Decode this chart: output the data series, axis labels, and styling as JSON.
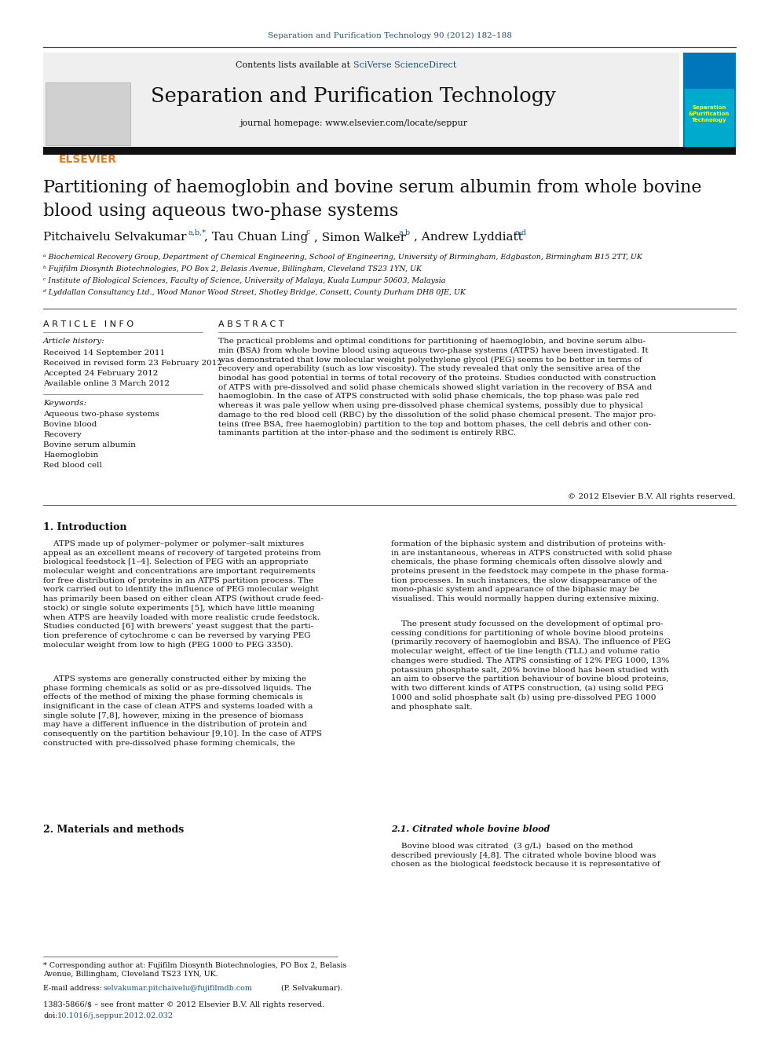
{
  "journal_ref": "Separation and Purification Technology 90 (2012) 182–188",
  "journal_name": "Separation and Purification Technology",
  "journal_homepage": "journal homepage: www.elsevier.com/locate/seppur",
  "contents_pre": "Contents lists available at ",
  "contents_link": "SciVerse ScienceDirect",
  "paper_title_line1": "Partitioning of haemoglobin and bovine serum albumin from whole bovine",
  "paper_title_line2": "blood using aqueous two-phase systems",
  "author1": "Pitchaivelu Selvakumar",
  "author1_sup": "a,b,*",
  "author2": ", Tau Chuan Ling",
  "author2_sup": "c",
  "author3": ", Simon Walker",
  "author3_sup": "a,b",
  "author4": ", Andrew Lyddiatt",
  "author4_sup": "a,d",
  "affil_a": "ᵃ Biochemical Recovery Group, Department of Chemical Engineering, School of Engineering, University of Birmingham, Edgbaston, Birmingham B15 2TT, UK",
  "affil_b": "ᵇ Fujifilm Diosynth Biotechnologies, PO Box 2, Belasis Avenue, Billingham, Cleveland TS23 1YN, UK",
  "affil_c": "ᶜ Institute of Biological Sciences, Faculty of Science, University of Malaya, Kuala Lumpur 50603, Malaysia",
  "affil_d": "ᵈ Lyddallan Consultancy Ltd., Wood Manor Wood Street, Shotley Bridge, Consett, County Durham DH8 0JE, UK",
  "article_info_header": "A R T I C L E   I N F O",
  "abstract_header": "A B S T R A C T",
  "article_history_label": "Article history:",
  "received": "Received 14 September 2011",
  "revised": "Received in revised form 23 February 2012",
  "accepted": "Accepted 24 February 2012",
  "available": "Available online 3 March 2012",
  "keywords_label": "Keywords:",
  "keywords": [
    "Aqueous two-phase systems",
    "Bovine blood",
    "Recovery",
    "Bovine serum albumin",
    "Haemoglobin",
    "Red blood cell"
  ],
  "abstract_text": "The practical problems and optimal conditions for partitioning of haemoglobin, and bovine serum albu-\nmin (BSA) from whole bovine blood using aqueous two-phase systems (ATPS) have been investigated. It\nwas demonstrated that low molecular weight polyethylene glycol (PEG) seems to be better in terms of\nrecovery and operability (such as low viscosity). The study revealed that only the sensitive area of the\nbinodal has good potential in terms of total recovery of the proteins. Studies conducted with construction\nof ATPS with pre-dissolved and solid phase chemicals showed slight variation in the recovery of BSA and\nhaemoglobin. In the case of ATPS constructed with solid phase chemicals, the top phase was pale red\nwhereas it was pale yellow when using pre-dissolved phase chemical systems, possibly due to physical\ndamage to the red blood cell (RBC) by the dissolution of the solid phase chemical present. The major pro-\nteins (free BSA, free haemoglobin) partition to the top and bottom phases, the cell debris and other con-\ntaminants partition at the inter-phase and the sediment is entirely RBC.",
  "copyright": "© 2012 Elsevier B.V. All rights reserved.",
  "intro_header": "1. Introduction",
  "intro_col1_para1": "    ATPS made up of polymer–polymer or polymer–salt mixtures\nappeal as an excellent means of recovery of targeted proteins from\nbiological feedstock [1–4]. Selection of PEG with an appropriate\nmolecular weight and concentrations are important requirements\nfor free distribution of proteins in an ATPS partition process. The\nwork carried out to identify the influence of PEG molecular weight\nhas primarily been based on either clean ATPS (without crude feed-\nstock) or single solute experiments [5], which have little meaning\nwhen ATPS are heavily loaded with more realistic crude feedstock.\nStudies conducted [6] with brewers’ yeast suggest that the parti-\ntion preference of cytochrome c can be reversed by varying PEG\nmolecular weight from low to high (PEG 1000 to PEG 3350).",
  "intro_col1_para2": "    ATPS systems are generally constructed either by mixing the\nphase forming chemicals as solid or as pre-dissolved liquids. The\neffects of the method of mixing the phase forming chemicals is\ninsignificant in the case of clean ATPS and systems loaded with a\nsingle solute [7,8], however, mixing in the presence of biomass\nmay have a different influence in the distribution of protein and\nconsequently on the partition behaviour [9,10]. In the case of ATPS\nconstructed with pre-dissolved phase forming chemicals, the",
  "intro_col2_para1": "formation of the biphasic system and distribution of proteins with-\nin are instantaneous, whereas in ATPS constructed with solid phase\nchemicals, the phase forming chemicals often dissolve slowly and\nproteins present in the feedstock may compete in the phase forma-\ntion processes. In such instances, the slow disappearance of the\nmono-phasic system and appearance of the biphasic may be\nvisualised. This would normally happen during extensive mixing.",
  "intro_col2_para2": "    The present study focussed on the development of optimal pro-\ncessing conditions for partitioning of whole bovine blood proteins\n(primarily recovery of haemoglobin and BSA). The influence of PEG\nmolecular weight, effect of tie line length (TLL) and volume ratio\nchanges were studied. The ATPS consisting of 12% PEG 1000, 13%\npotassium phosphate salt, 20% bovine blood has been studied with\nan aim to observe the partition behaviour of bovine blood proteins,\nwith two different kinds of ATPS construction, (a) using solid PEG\n1000 and solid phosphate salt (b) using pre-dissolved PEG 1000\nand phosphate salt.",
  "section2_header": "2. Materials and methods",
  "section2_1_header": "2.1. Citrated whole bovine blood",
  "section2_1_text": "    Bovine blood was citrated  (3 g/L)  based on the method\ndescribed previously [4,8]. The citrated whole bovine blood was\nchosen as the biological feedstock because it is representative of",
  "footnote_star": "* Corresponding author at: Fujifilm Diosynth Biotechnologies, PO Box 2, Belasis\nAvenue, Billingham, Cleveland TS23 1YN, UK.",
  "footnote_email_pre": "E-mail address: ",
  "footnote_email_link": "selvakumar.pitchaivelu@fujifilmdb.com",
  "footnote_email_post": " (P. Selvakumar).",
  "footnote_issn": "1383-5866/$ – see front matter © 2012 Elsevier B.V. All rights reserved.",
  "footnote_doi_pre": "doi:",
  "footnote_doi_link": "10.1016/j.seppur.2012.02.032",
  "bg_color": "#ffffff",
  "link_color": "#1a5276",
  "elsevier_orange": "#e87722",
  "text_color": "#111111"
}
